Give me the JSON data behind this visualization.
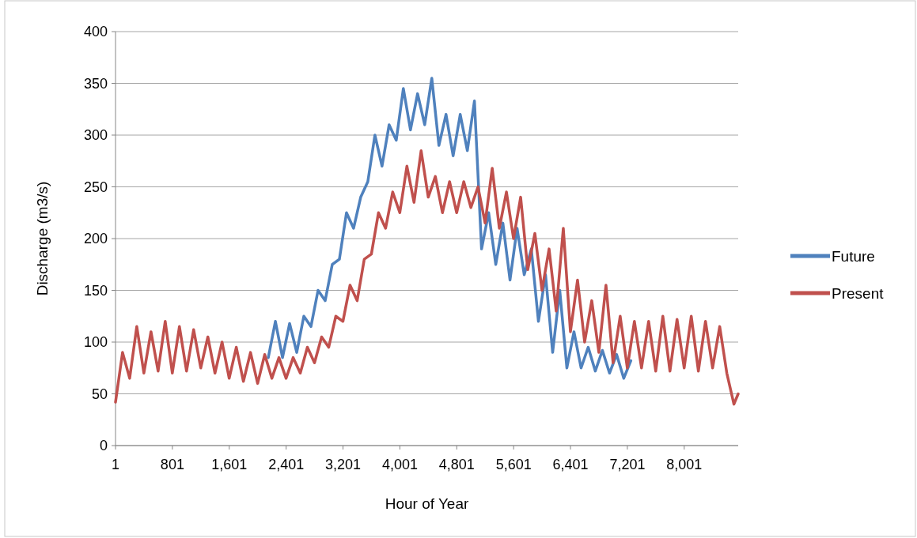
{
  "chart_data": {
    "type": "line",
    "xlabel": "Hour of Year",
    "ylabel": "Discharge (m3/s)",
    "xlim": [
      1,
      8760
    ],
    "xticks": [
      1,
      801,
      {
        "value": 1601,
        "label": "1,601"
      },
      {
        "value": 2401,
        "label": "2,401"
      },
      {
        "value": 3201,
        "label": "3,201"
      },
      {
        "value": 4001,
        "label": "4,001"
      },
      {
        "value": 4801,
        "label": "4,801"
      },
      {
        "value": 5601,
        "label": "5,601"
      },
      {
        "value": 6401,
        "label": "6,401"
      },
      {
        "value": 7201,
        "label": "7,201"
      },
      {
        "value": 8001,
        "label": "8,001"
      }
    ],
    "ylim": [
      0,
      400
    ],
    "yticks": [
      0,
      50,
      100,
      150,
      200,
      250,
      300,
      350,
      400
    ],
    "grid": "y",
    "legend": "right",
    "marker": "none",
    "line_style": "solid",
    "series": [
      {
        "name": "Future",
        "color": "#4f81bd",
        "x": [
          2150,
          2250,
          2350,
          2450,
          2550,
          2650,
          2750,
          2850,
          2950,
          3050,
          3150,
          3250,
          3350,
          3450,
          3550,
          3650,
          3750,
          3850,
          3950,
          4050,
          4150,
          4250,
          4350,
          4450,
          4550,
          4650,
          4750,
          4850,
          4950,
          5050,
          5150,
          5250,
          5350,
          5450,
          5550,
          5650,
          5750,
          5850,
          5950,
          6050,
          6150,
          6250,
          6350,
          6450,
          6550,
          6650,
          6750,
          6850,
          6950,
          7050,
          7150,
          7250
        ],
        "values": [
          85,
          120,
          85,
          118,
          90,
          125,
          115,
          150,
          140,
          175,
          180,
          225,
          210,
          240,
          255,
          300,
          270,
          310,
          295,
          345,
          305,
          340,
          310,
          355,
          290,
          320,
          280,
          320,
          285,
          333,
          190,
          225,
          175,
          215,
          160,
          210,
          165,
          190,
          120,
          165,
          90,
          150,
          75,
          110,
          75,
          95,
          72,
          92,
          70,
          88,
          65,
          82
        ]
      },
      {
        "name": "Present",
        "color": "#c0504d",
        "x": [
          1,
          100,
          200,
          300,
          400,
          500,
          600,
          700,
          800,
          900,
          1000,
          1100,
          1200,
          1300,
          1400,
          1500,
          1600,
          1700,
          1800,
          1900,
          2000,
          2100,
          2200,
          2300,
          2400,
          2500,
          2600,
          2700,
          2800,
          2900,
          3000,
          3100,
          3200,
          3300,
          3400,
          3500,
          3600,
          3700,
          3800,
          3900,
          4000,
          4100,
          4200,
          4300,
          4400,
          4500,
          4600,
          4700,
          4800,
          4900,
          5000,
          5100,
          5200,
          5300,
          5400,
          5500,
          5600,
          5700,
          5800,
          5900,
          6000,
          6100,
          6200,
          6300,
          6400,
          6500,
          6600,
          6700,
          6800,
          6900,
          7000,
          7100,
          7200,
          7300,
          7400,
          7500,
          7600,
          7700,
          7800,
          7900,
          8000,
          8100,
          8200,
          8300,
          8400,
          8500,
          8600,
          8700,
          8760
        ],
        "values": [
          42,
          90,
          65,
          115,
          70,
          110,
          72,
          120,
          70,
          115,
          72,
          112,
          75,
          105,
          70,
          100,
          65,
          95,
          62,
          90,
          60,
          88,
          65,
          85,
          65,
          85,
          70,
          95,
          80,
          105,
          95,
          125,
          120,
          155,
          140,
          180,
          185,
          225,
          210,
          245,
          225,
          270,
          235,
          285,
          240,
          260,
          225,
          255,
          225,
          255,
          230,
          250,
          215,
          268,
          210,
          245,
          200,
          240,
          170,
          205,
          150,
          190,
          130,
          210,
          110,
          160,
          100,
          140,
          90,
          155,
          80,
          125,
          75,
          120,
          75,
          120,
          72,
          125,
          72,
          122,
          75,
          125,
          72,
          120,
          75,
          115,
          70,
          40,
          50
        ]
      }
    ]
  }
}
